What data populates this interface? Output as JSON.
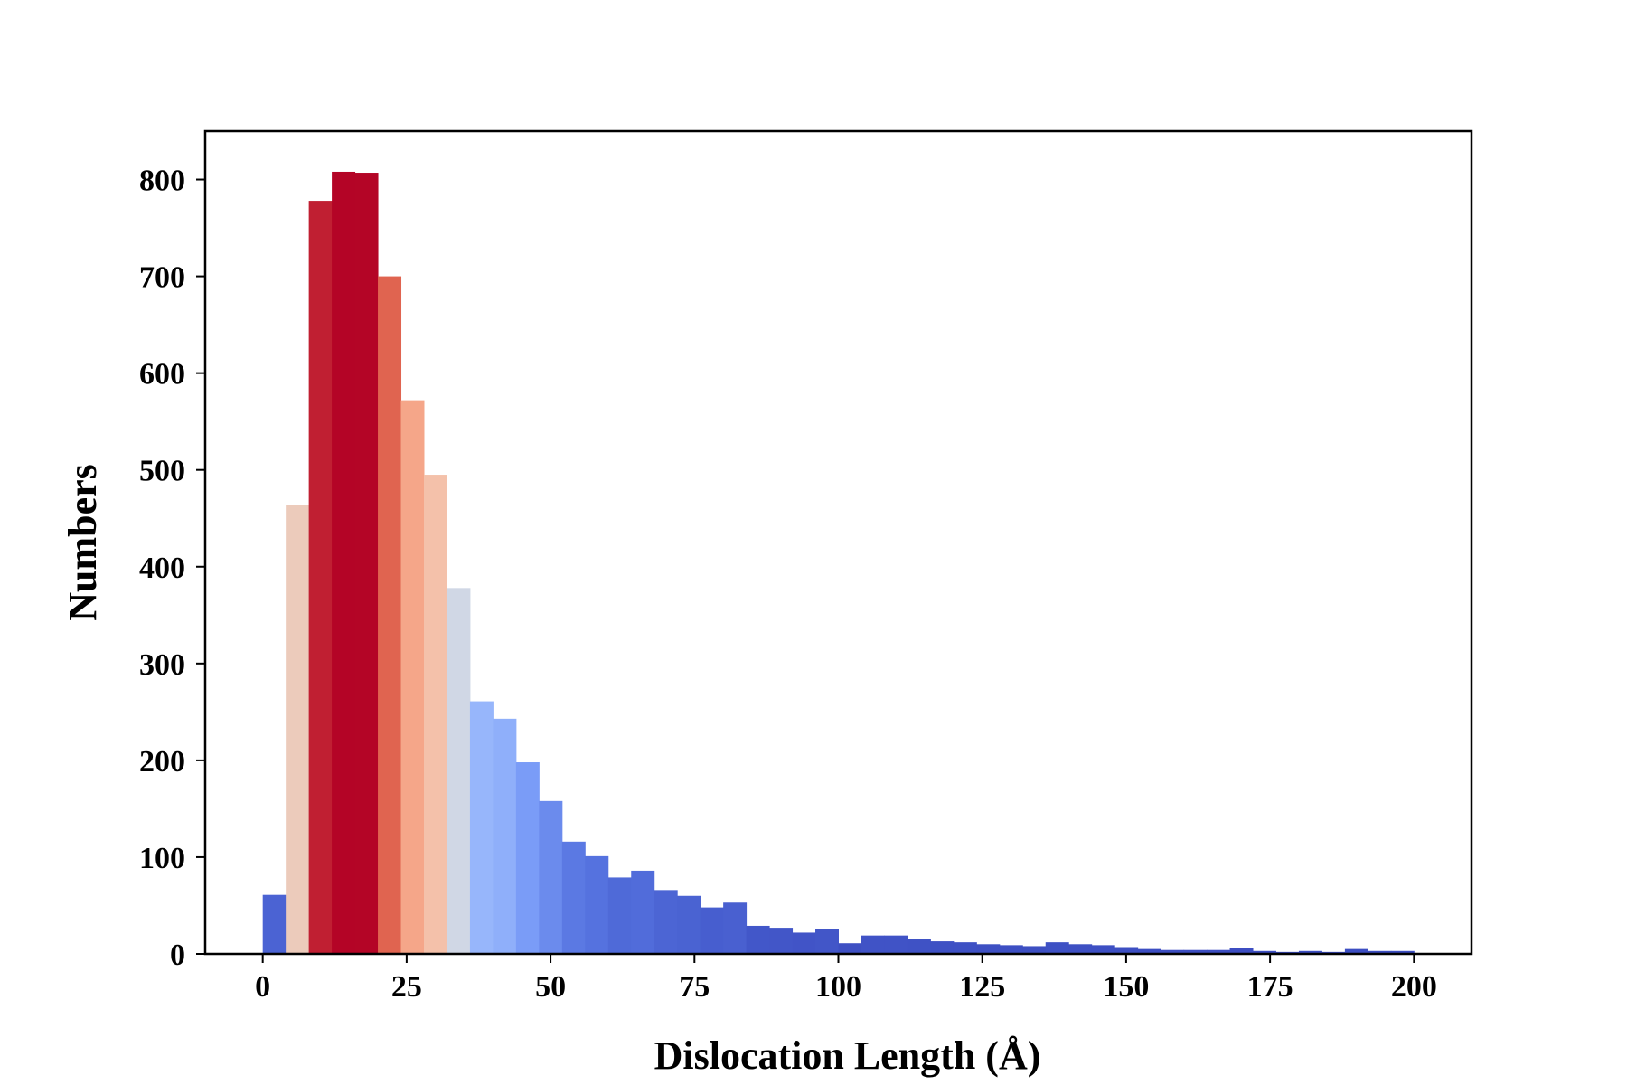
{
  "chart_data": {
    "type": "bar",
    "subtype": "histogram",
    "xlabel": "Dislocation Length (Å)",
    "ylabel": "Numbers",
    "xlim": [
      -10,
      210
    ],
    "ylim": [
      0,
      850
    ],
    "x_ticks": [
      0,
      25,
      50,
      75,
      100,
      125,
      150,
      175,
      200
    ],
    "y_ticks": [
      0,
      100,
      200,
      300,
      400,
      500,
      600,
      700,
      800
    ],
    "grid": false,
    "legend": "none",
    "colormap": "coolwarm",
    "bin_width": 4,
    "bin_edges_start": 0,
    "values": [
      61,
      464,
      778,
      808,
      807,
      700,
      572,
      495,
      378,
      261,
      243,
      198,
      158,
      116,
      101,
      79,
      86,
      66,
      60,
      48,
      53,
      29,
      27,
      22,
      26,
      11,
      19,
      19,
      15,
      13,
      12,
      10,
      9,
      8,
      12,
      10,
      9,
      7,
      5,
      4,
      4,
      4,
      6,
      3,
      2,
      3,
      2,
      5,
      3,
      3
    ]
  }
}
